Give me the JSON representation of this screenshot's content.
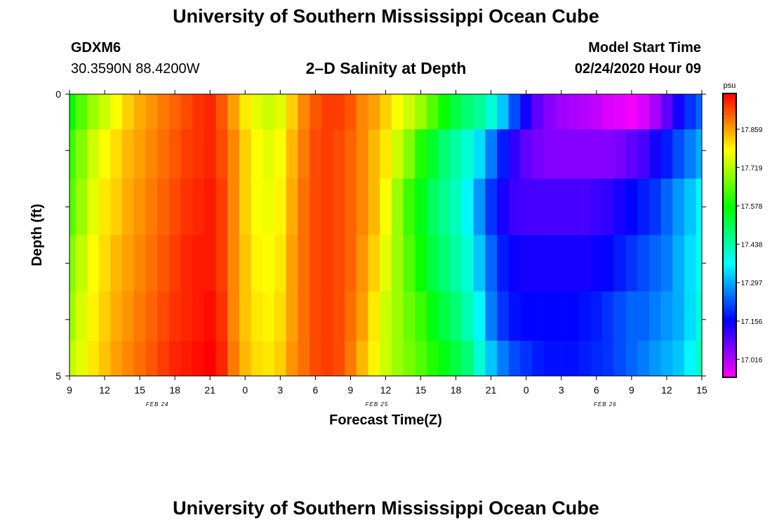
{
  "header": {
    "title": "University of Southern Mississippi Ocean Cube",
    "station_id": "GDXM6",
    "station_coords": "30.3590N 88.4200W",
    "chart_title": "2–D Salinity at Depth",
    "model_start_label": "Model Start Time",
    "model_start_value": "02/24/2020 Hour 09"
  },
  "footer": {
    "title": "University of Southern Mississippi Ocean Cube"
  },
  "chart_data": {
    "type": "heatmap",
    "title": "2–D Salinity at Depth",
    "xlabel": "Forecast Time(Z)",
    "ylabel": "Depth (ft)",
    "unit": "psu",
    "x_tick_labels": [
      "9",
      "12",
      "15",
      "18",
      "21",
      "0",
      "3",
      "6",
      "9",
      "12",
      "15",
      "18",
      "21",
      "0",
      "3",
      "6",
      "9",
      "12",
      "15"
    ],
    "date_labels": [
      {
        "text": "FEB 24",
        "tick_index": 2.5
      },
      {
        "text": "FEB 25",
        "tick_index": 8.75
      },
      {
        "text": "FEB 26",
        "tick_index": 15.25
      }
    ],
    "x_range_hours": [
      0,
      54
    ],
    "y_tick_labels": [
      "0",
      "5"
    ],
    "y_range": [
      0,
      5
    ],
    "colorbar_ticks": [
      "17.859",
      "17.719",
      "17.578",
      "17.438",
      "17.297",
      "17.156",
      "17.016"
    ],
    "value_range": [
      16.95,
      17.99
    ],
    "layer_depths_ft": [
      0.25,
      1.0,
      2.0,
      3.0,
      4.0,
      4.75
    ],
    "time_hours": [
      0,
      1,
      2,
      3,
      4,
      5,
      6,
      7,
      8,
      9,
      10,
      11,
      12,
      13,
      14,
      15,
      16,
      17,
      18,
      19,
      20,
      21,
      22,
      23,
      24,
      25,
      26,
      27,
      28,
      29,
      30,
      31,
      32,
      33,
      34,
      35,
      36,
      37,
      38,
      39,
      40,
      41,
      42,
      43,
      44,
      45,
      46,
      47,
      48,
      49,
      50,
      51,
      52,
      53,
      54
    ],
    "salinity_rows": [
      [
        17.58,
        17.64,
        17.7,
        17.74,
        17.78,
        17.82,
        17.85,
        17.87,
        17.89,
        17.91,
        17.93,
        17.95,
        17.96,
        17.92,
        17.86,
        17.8,
        17.76,
        17.74,
        17.76,
        17.82,
        17.88,
        17.92,
        17.94,
        17.94,
        17.92,
        17.88,
        17.86,
        17.82,
        17.78,
        17.74,
        17.7,
        17.64,
        17.58,
        17.52,
        17.48,
        17.45,
        17.4,
        17.32,
        17.22,
        17.14,
        17.08,
        17.05,
        17.03,
        17.02,
        17.01,
        17.0,
        16.98,
        16.97,
        16.96,
        16.98,
        17.02,
        17.08,
        17.14,
        17.2,
        17.24
      ],
      [
        17.62,
        17.68,
        17.74,
        17.78,
        17.81,
        17.84,
        17.86,
        17.88,
        17.9,
        17.92,
        17.94,
        17.95,
        17.96,
        17.93,
        17.88,
        17.82,
        17.78,
        17.76,
        17.78,
        17.84,
        17.89,
        17.93,
        17.94,
        17.93,
        17.91,
        17.88,
        17.84,
        17.8,
        17.74,
        17.68,
        17.6,
        17.54,
        17.48,
        17.44,
        17.4,
        17.34,
        17.26,
        17.18,
        17.12,
        17.08,
        17.06,
        17.05,
        17.05,
        17.05,
        17.05,
        17.05,
        17.05,
        17.06,
        17.08,
        17.1,
        17.14,
        17.18,
        17.22,
        17.26,
        17.3
      ],
      [
        17.64,
        17.7,
        17.76,
        17.8,
        17.82,
        17.85,
        17.87,
        17.89,
        17.91,
        17.93,
        17.95,
        17.96,
        17.97,
        17.94,
        17.88,
        17.82,
        17.78,
        17.77,
        17.79,
        17.85,
        17.9,
        17.93,
        17.94,
        17.93,
        17.91,
        17.88,
        17.84,
        17.78,
        17.7,
        17.62,
        17.56,
        17.5,
        17.46,
        17.42,
        17.36,
        17.28,
        17.2,
        17.14,
        17.11,
        17.1,
        17.1,
        17.1,
        17.1,
        17.1,
        17.1,
        17.11,
        17.12,
        17.14,
        17.16,
        17.18,
        17.2,
        17.24,
        17.28,
        17.32,
        17.36
      ],
      [
        17.68,
        17.73,
        17.78,
        17.81,
        17.84,
        17.86,
        17.88,
        17.9,
        17.92,
        17.94,
        17.96,
        17.97,
        17.97,
        17.94,
        17.88,
        17.83,
        17.79,
        17.78,
        17.8,
        17.86,
        17.9,
        17.93,
        17.94,
        17.93,
        17.91,
        17.87,
        17.82,
        17.76,
        17.7,
        17.64,
        17.58,
        17.52,
        17.48,
        17.44,
        17.4,
        17.32,
        17.24,
        17.18,
        17.15,
        17.14,
        17.14,
        17.14,
        17.14,
        17.14,
        17.14,
        17.15,
        17.16,
        17.18,
        17.2,
        17.22,
        17.24,
        17.26,
        17.3,
        17.34,
        17.38
      ],
      [
        17.7,
        17.75,
        17.79,
        17.82,
        17.85,
        17.87,
        17.89,
        17.91,
        17.93,
        17.95,
        17.96,
        17.97,
        17.98,
        17.95,
        17.88,
        17.83,
        17.8,
        17.79,
        17.81,
        17.86,
        17.9,
        17.93,
        17.94,
        17.93,
        17.9,
        17.86,
        17.8,
        17.74,
        17.7,
        17.66,
        17.62,
        17.56,
        17.52,
        17.48,
        17.43,
        17.36,
        17.26,
        17.2,
        17.17,
        17.16,
        17.16,
        17.16,
        17.16,
        17.16,
        17.17,
        17.18,
        17.2,
        17.22,
        17.24,
        17.24,
        17.26,
        17.28,
        17.3,
        17.34,
        17.4
      ],
      [
        17.73,
        17.76,
        17.8,
        17.83,
        17.86,
        17.88,
        17.9,
        17.92,
        17.94,
        17.96,
        17.97,
        17.98,
        17.99,
        17.96,
        17.89,
        17.84,
        17.81,
        17.8,
        17.82,
        17.87,
        17.9,
        17.93,
        17.94,
        17.93,
        17.89,
        17.84,
        17.79,
        17.74,
        17.7,
        17.67,
        17.64,
        17.6,
        17.56,
        17.52,
        17.48,
        17.4,
        17.32,
        17.26,
        17.22,
        17.2,
        17.18,
        17.17,
        17.17,
        17.17,
        17.18,
        17.19,
        17.2,
        17.22,
        17.24,
        17.26,
        17.28,
        17.3,
        17.32,
        17.36,
        17.42
      ]
    ]
  }
}
